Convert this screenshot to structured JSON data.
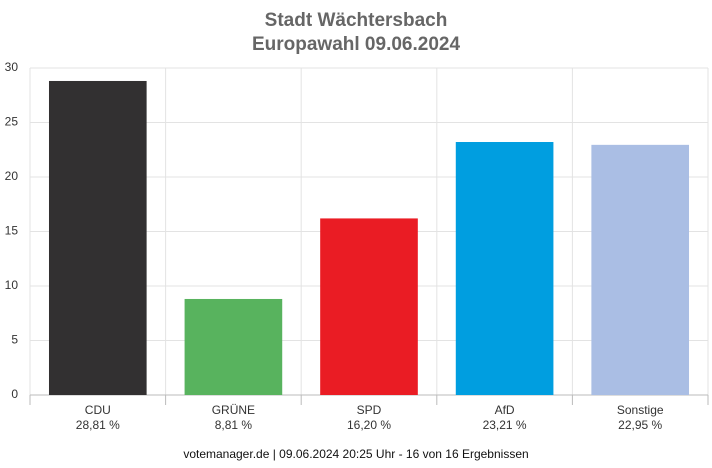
{
  "chart_data": {
    "type": "bar",
    "title": "Stadt Wächtersbach",
    "subtitle": "Europawahl 09.06.2024",
    "categories": [
      "CDU",
      "GRÜNE",
      "SPD",
      "AfD",
      "Sonstige"
    ],
    "values": [
      28.81,
      8.81,
      16.2,
      23.21,
      22.95
    ],
    "value_labels": [
      "28,81 %",
      "8,81 %",
      "16,20 %",
      "23,21 %",
      "22,95 %"
    ],
    "colors": [
      "#323031",
      "#58b35e",
      "#ea1c24",
      "#009ee0",
      "#aabee4"
    ],
    "ylim": [
      0,
      30
    ],
    "yticks": [
      0,
      5,
      10,
      15,
      20,
      25,
      30
    ],
    "grid": true,
    "footer": "votemanager.de | 09.06.2024 20:25 Uhr - 16 von 16 Ergebnissen"
  }
}
